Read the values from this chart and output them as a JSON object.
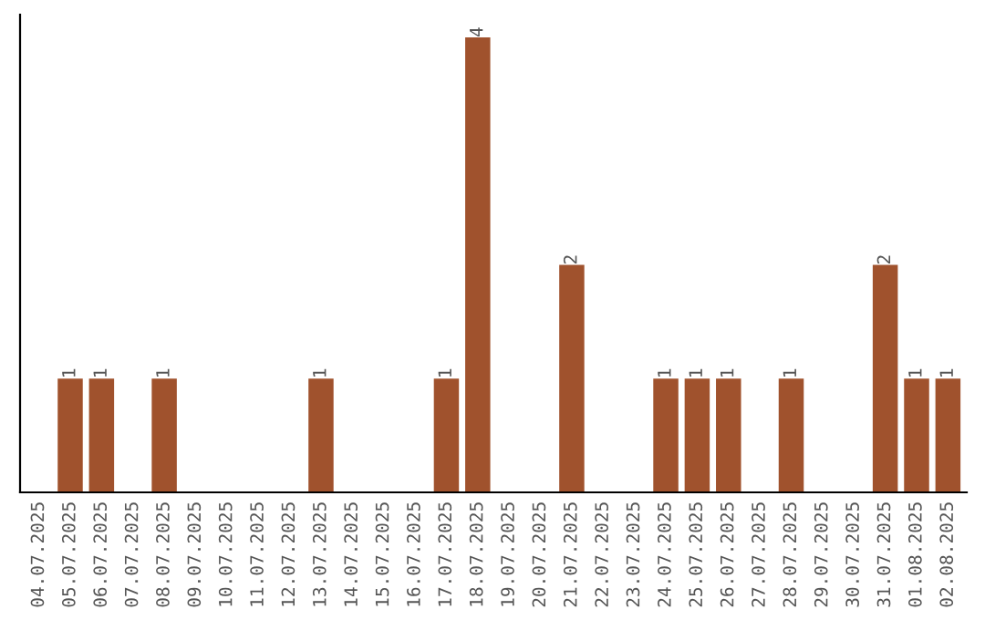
{
  "chart_data": {
    "type": "bar",
    "categories": [
      "04.07.2025",
      "05.07.2025",
      "06.07.2025",
      "07.07.2025",
      "08.07.2025",
      "09.07.2025",
      "10.07.2025",
      "11.07.2025",
      "12.07.2025",
      "13.07.2025",
      "14.07.2025",
      "15.07.2025",
      "16.07.2025",
      "17.07.2025",
      "18.07.2025",
      "19.07.2025",
      "20.07.2025",
      "21.07.2025",
      "22.07.2025",
      "23.07.2025",
      "24.07.2025",
      "25.07.2025",
      "26.07.2025",
      "27.07.2025",
      "28.07.2025",
      "29.07.2025",
      "30.07.2025",
      "31.07.2025",
      "01.08.2025",
      "02.08.2025"
    ],
    "values": [
      0,
      1,
      1,
      0,
      1,
      0,
      0,
      0,
      0,
      1,
      0,
      0,
      0,
      1,
      4,
      0,
      0,
      2,
      0,
      0,
      1,
      1,
      1,
      0,
      1,
      0,
      0,
      2,
      1,
      1
    ],
    "color": "#a0522d",
    "value_labels": [
      null,
      "1",
      "1",
      null,
      "1",
      null,
      null,
      null,
      null,
      "1",
      null,
      null,
      null,
      "1",
      "4",
      null,
      null,
      "2",
      null,
      null,
      "1",
      "1",
      "1",
      null,
      "1",
      null,
      null,
      "2",
      "1",
      "1"
    ],
    "tick_labels": "x",
    "grid": false
  }
}
